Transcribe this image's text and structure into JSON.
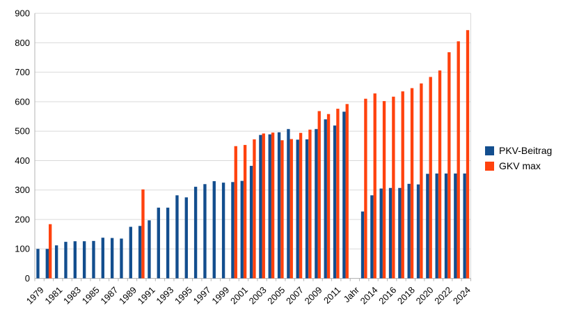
{
  "chart_data": {
    "type": "bar",
    "title": "",
    "xlabel": "",
    "ylabel": "",
    "categories": [
      "1979",
      "1980",
      "1981",
      "1982",
      "1983",
      "1984",
      "1985",
      "1986",
      "1987",
      "1988",
      "1989",
      "1990",
      "1991",
      "1992",
      "1993",
      "1994",
      "1995",
      "1996",
      "1997",
      "1998",
      "1999",
      "2000",
      "2001",
      "2002",
      "2003",
      "2004",
      "2005",
      "2006",
      "2007",
      "2008",
      "2009",
      "2010",
      "2011",
      "2012",
      "Jahr",
      "2013",
      "2014",
      "2015",
      "2016",
      "2017",
      "2018",
      "2019",
      "2020",
      "2021",
      "2022",
      "2023",
      "2024"
    ],
    "series": [
      {
        "name": "PKV-Beitrag",
        "color": "#134e8e",
        "values": [
          100,
          100,
          112,
          124,
          126,
          126,
          127,
          138,
          137,
          135,
          175,
          178,
          197,
          240,
          240,
          282,
          275,
          311,
          320,
          330,
          325,
          327,
          331,
          382,
          487,
          489,
          496,
          507,
          471,
          472,
          507,
          540,
          519,
          566,
          null,
          227,
          282,
          305,
          307,
          307,
          321,
          319,
          355,
          356,
          356,
          356,
          356
        ]
      },
      {
        "name": "GKV max",
        "color": "#ff420e",
        "values": [
          null,
          184,
          null,
          null,
          null,
          null,
          null,
          null,
          null,
          null,
          null,
          302,
          null,
          null,
          null,
          null,
          null,
          null,
          null,
          null,
          null,
          449,
          453,
          472,
          492,
          495,
          469,
          473,
          494,
          505,
          568,
          558,
          576,
          592,
          null,
          610,
          628,
          602,
          617,
          635,
          646,
          662,
          684,
          706,
          768,
          805,
          843
        ]
      }
    ],
    "ylim": [
      0,
      900
    ],
    "y_tick_step": 100,
    "y_tick_labels": [
      "0",
      "100",
      "200",
      "300",
      "400",
      "500",
      "600",
      "700",
      "800",
      "900"
    ],
    "x_tick_labels": [
      "1979",
      "1981",
      "1983",
      "1985",
      "1987",
      "1989",
      "1991",
      "1993",
      "1995",
      "1997",
      "1999",
      "2001",
      "2003",
      "2005",
      "2007",
      "2009",
      "2011",
      "Jahr",
      "2014",
      "2016",
      "2018",
      "2020",
      "2022",
      "2024"
    ],
    "grid": true,
    "legend_position": "right"
  },
  "colors": {
    "gridline": "#d9d9d9",
    "axis": "#b3b3b3",
    "text": "#000000",
    "background": "#ffffff"
  }
}
